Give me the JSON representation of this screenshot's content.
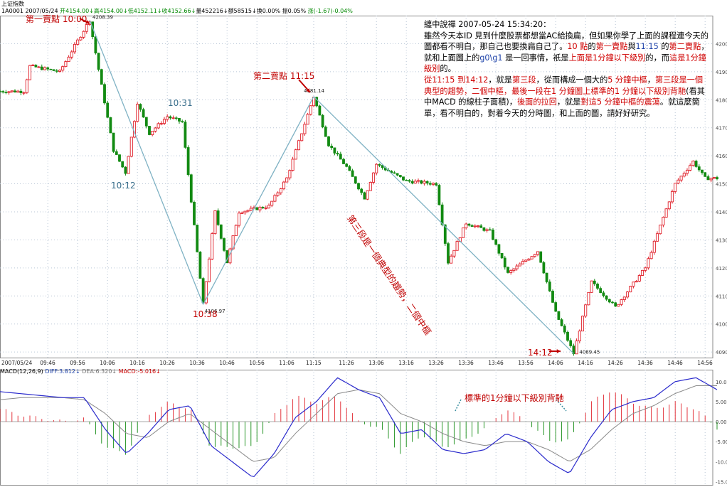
{
  "header": {
    "index_name": "上证指数",
    "code": "1A0001",
    "date": "2007/05/24",
    "open": "开4154.00",
    "open_arrow": "↓",
    "high": "高4154.00",
    "high_arrow": "↓",
    "low": "低4152.11",
    "low_arrow": "↓",
    "close": "收4152.66",
    "close_arrow": "↓",
    "volume": "量452216",
    "volume_arrow": "↓",
    "amount": "额58515",
    "amount_arrow": "↓",
    "turnover": "换0.00%",
    "amplitude": "振0.05%",
    "change": "涨(-1.67)-0.04%"
  },
  "note": {
    "title": "纏中說禪 2007-05-24 15:34:20：",
    "p1": "雖然今天本ID 見到什麼股票都想當AC給換扁，但如果你學了上面的課程連今天的圖都看不明白，那自己也要換扁自己了。",
    "p1_red1": "10 點",
    "p1_mid1": "的",
    "p1_red2": "第一賣點",
    "p1_mid2": "與",
    "p1_blue1": "11:15",
    "p1_mid3": " 的",
    "p1_red3": "第二賣點",
    "p1_mid4": "，就和上面圖上的",
    "p1_blue2": "g0\\g1",
    "p1_mid5": " 是一回事情，衹是",
    "p1_red4": "上面是1分鐘以下級別",
    "p1_mid6": "的，而",
    "p1_red5": "這是1分鐘級別",
    "p1_mid7": "的。",
    "p2_red1": "從11:15 到14:12",
    "p2_mid1": "，就是",
    "p2_red2": "第三段",
    "p2_mid2": "，從而構成一個大的",
    "p2_red3": "5 分鐘中樞",
    "p2_mid3": "，",
    "p2_red4": "第三段是一個典型的趨勢，二個中樞，最後一段在1 分鐘圖上標準的1 分鐘以下級別背馳",
    "p2_mid4": "(看其中MACD 的線柱子面積)，",
    "p2_red5": "後面的拉回",
    "p2_mid5": "，就是",
    "p2_red6": "對這5 分鐘中樞的震蕩",
    "p2_mid6": "。就這麼簡單，看不明白的，對着今天的分時圖，和上面的圖，請好好研究。"
  },
  "annotations": {
    "sell1": "第一賣點",
    "sell1_time": "10:00",
    "sell2": "第二賣點 11:15",
    "t1012": "10:12",
    "t1031": "10:31",
    "t1038": "10:38",
    "t1412": "14:12",
    "diag": "第三段是一個典型的趨勢，二個中樞",
    "divergence": "標準的1分鐘以下級別背馳"
  },
  "macd_header": {
    "label": "MACD(12,26,9)",
    "diff": "DIFF:3.812",
    "diff_arrow": "↓",
    "dea": "DEA:6.320",
    "dea_arrow": "↓",
    "macd": "MACD:-5.016",
    "macd_arrow": "↓"
  },
  "colors": {
    "up": "#e0202a",
    "down": "#128a12",
    "grid": "#b9c6d6",
    "trend": "#7fb2c4",
    "diff": "#2b2bcc",
    "dea": "#8a8a8a"
  },
  "chart_data": [
    {
      "type": "candlestick",
      "x_ticks": [
        "2007/05/24",
        "09:46",
        "09:56",
        "10:06",
        "10:16",
        "10:26",
        "10:36",
        "10:46",
        "10:56",
        "11:06",
        "11:15",
        "11:26",
        "13:06",
        "13:16",
        "13:26",
        "13:36",
        "13:46",
        "13:56",
        "14:06",
        "14:16",
        "14:26",
        "14:36",
        "14:46",
        "14:56"
      ],
      "y_ticks": [
        4090,
        4100,
        4110,
        4120,
        4130,
        4140,
        4150,
        4160,
        4170,
        4180,
        4190,
        4200
      ],
      "y_range": [
        4088,
        4210
      ],
      "price_labels": [
        "4208.39",
        "4181.14",
        "4106.97",
        "4089.45"
      ],
      "path_points": [
        {
          "t": "09:30",
          "p": 4183
        },
        {
          "t": "09:38",
          "p": 4183
        },
        {
          "t": "09:40",
          "p": 4192
        },
        {
          "t": "09:50",
          "p": 4190
        },
        {
          "t": "10:00",
          "p": 4208.39
        },
        {
          "t": "10:04",
          "p": 4185
        },
        {
          "t": "10:08",
          "p": 4162
        },
        {
          "t": "10:12",
          "p": 4154
        },
        {
          "t": "10:16",
          "p": 4179
        },
        {
          "t": "10:20",
          "p": 4168
        },
        {
          "t": "10:26",
          "p": 4174
        },
        {
          "t": "10:31",
          "p": 4172
        },
        {
          "t": "10:34",
          "p": 4144
        },
        {
          "t": "10:38",
          "p": 4106.97
        },
        {
          "t": "10:42",
          "p": 4140
        },
        {
          "t": "10:46",
          "p": 4122
        },
        {
          "t": "10:50",
          "p": 4140
        },
        {
          "t": "11:00",
          "p": 4142
        },
        {
          "t": "11:06",
          "p": 4152
        },
        {
          "t": "11:15",
          "p": 4181.14
        },
        {
          "t": "11:20",
          "p": 4164
        },
        {
          "t": "11:26",
          "p": 4156
        },
        {
          "t": "13:02",
          "p": 4145
        },
        {
          "t": "13:06",
          "p": 4157
        },
        {
          "t": "13:16",
          "p": 4151
        },
        {
          "t": "13:26",
          "p": 4150
        },
        {
          "t": "13:30",
          "p": 4122
        },
        {
          "t": "13:36",
          "p": 4136
        },
        {
          "t": "13:44",
          "p": 4133
        },
        {
          "t": "13:50",
          "p": 4118
        },
        {
          "t": "14:00",
          "p": 4126
        },
        {
          "t": "14:06",
          "p": 4104
        },
        {
          "t": "14:12",
          "p": 4089.45
        },
        {
          "t": "14:18",
          "p": 4115
        },
        {
          "t": "14:26",
          "p": 4106
        },
        {
          "t": "14:36",
          "p": 4120
        },
        {
          "t": "14:46",
          "p": 4150
        },
        {
          "t": "14:52",
          "p": 4158
        },
        {
          "t": "14:56",
          "p": 4152
        }
      ]
    },
    {
      "type": "line",
      "title": "MACD(12,26,9)",
      "y_ticks": [
        10,
        5,
        0,
        -5,
        -10,
        -15
      ],
      "y_range": [
        -16,
        13
      ],
      "series": [
        {
          "name": "DIFF",
          "values": [
            7.5,
            7,
            6.5,
            6,
            6,
            -2,
            -8,
            -3,
            3,
            4,
            -6,
            -10,
            -14,
            -8,
            1,
            5,
            11,
            8,
            6,
            -3,
            -2,
            -7,
            -8,
            -7,
            -3,
            -5,
            -10,
            -13,
            -4,
            3,
            5,
            6,
            10,
            11,
            8
          ]
        },
        {
          "name": "DEA",
          "values": [
            5.5,
            6,
            6,
            6,
            5.5,
            2,
            -3,
            -4,
            0,
            2,
            -2,
            -6,
            -10,
            -9,
            -3,
            2,
            7,
            8,
            7,
            2,
            0,
            -3,
            -5,
            -6,
            -5,
            -5,
            -7,
            -10,
            -7,
            -2,
            2,
            4,
            7,
            9,
            9
          ]
        },
        {
          "name": "MACD",
          "values": [
            2,
            1,
            0.5,
            0,
            0.5,
            -4,
            -5,
            1,
            3,
            2,
            -4,
            -4,
            -4,
            1,
            4,
            3,
            4,
            0,
            -1,
            -5,
            -2,
            -4,
            -3,
            -1,
            2,
            0,
            -3,
            -3,
            3,
            5,
            3,
            2,
            3,
            2,
            -1
          ]
        }
      ]
    }
  ]
}
